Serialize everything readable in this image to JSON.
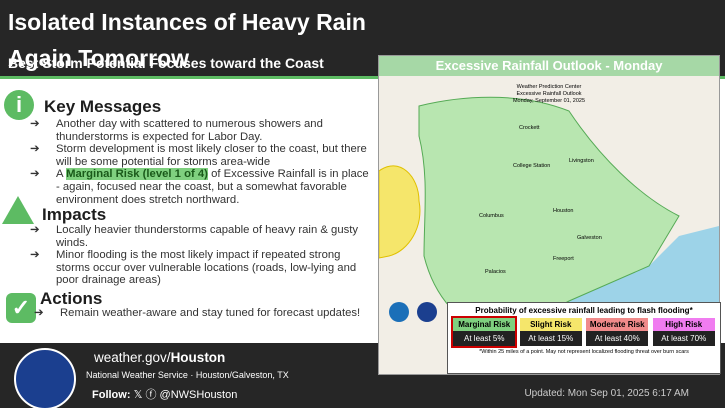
{
  "header": {
    "title": "Isolated Instances of Heavy Rain Again Tomorrow",
    "subtitle": "Best Storm Potential Focuses toward the Coast"
  },
  "key_messages": {
    "heading": "Key Messages",
    "bullets": [
      "Another day with scattered to numerous showers and thunderstorms is expected for Labor Day.",
      "Storm development is most likely closer to the coast, but there will be some potential for storms area-wide"
    ],
    "bullet3": {
      "before": "A ",
      "highlight": "Marginal Risk (level 1 of 4)",
      "after": " of Excessive Rainfall is in place - again, focused near the coast, but a somewhat favorable environment does stretch northward."
    }
  },
  "impacts": {
    "heading": "Impacts",
    "bullets": [
      "Locally heavier thunderstorms capable of heavy rain & gusty winds.",
      "Minor flooding is the most likely impact if repeated strong storms occur over vulnerable locations (roads, low-lying and poor drainage areas)"
    ]
  },
  "actions": {
    "heading": "Actions",
    "bullets": [
      "Remain weather-aware and stay tuned for forecast updates!"
    ]
  },
  "map": {
    "title": "Excessive Rainfall Outlook - Monday",
    "header_lines": [
      "Weather Prediction Center",
      "Excessive Rainfall Outlook",
      "Monday, September 01, 2025"
    ],
    "cities": [
      "Crockett",
      "College Station",
      "Livingston",
      "Columbus",
      "Houston",
      "Galveston",
      "Freeport",
      "Palacios"
    ]
  },
  "legend": {
    "title": "Probability of excessive rainfall leading to flash flooding*",
    "risks": [
      {
        "name": "Marginal Risk",
        "label": "At least 5%",
        "color": "#7fd07f"
      },
      {
        "name": "Slight Risk",
        "label": "At least 15%",
        "color": "#f5e66b"
      },
      {
        "name": "Moderate Risk",
        "label": "At least 40%",
        "color": "#f08a8a"
      },
      {
        "name": "High Risk",
        "label": "At least 70%",
        "color": "#f07cf0"
      }
    ],
    "footnote": "*Within 25 miles of a point. May not represent localized flooding threat over burn scars"
  },
  "footer": {
    "site_prefix": "weather.gov/",
    "site_office": "Houston",
    "office": "National Weather Service · Houston/Galveston, TX",
    "follow": "Follow:",
    "handle": "@NWSHouston",
    "updated": "Updated: Mon Sep 01, 2025 6:17 AM"
  }
}
